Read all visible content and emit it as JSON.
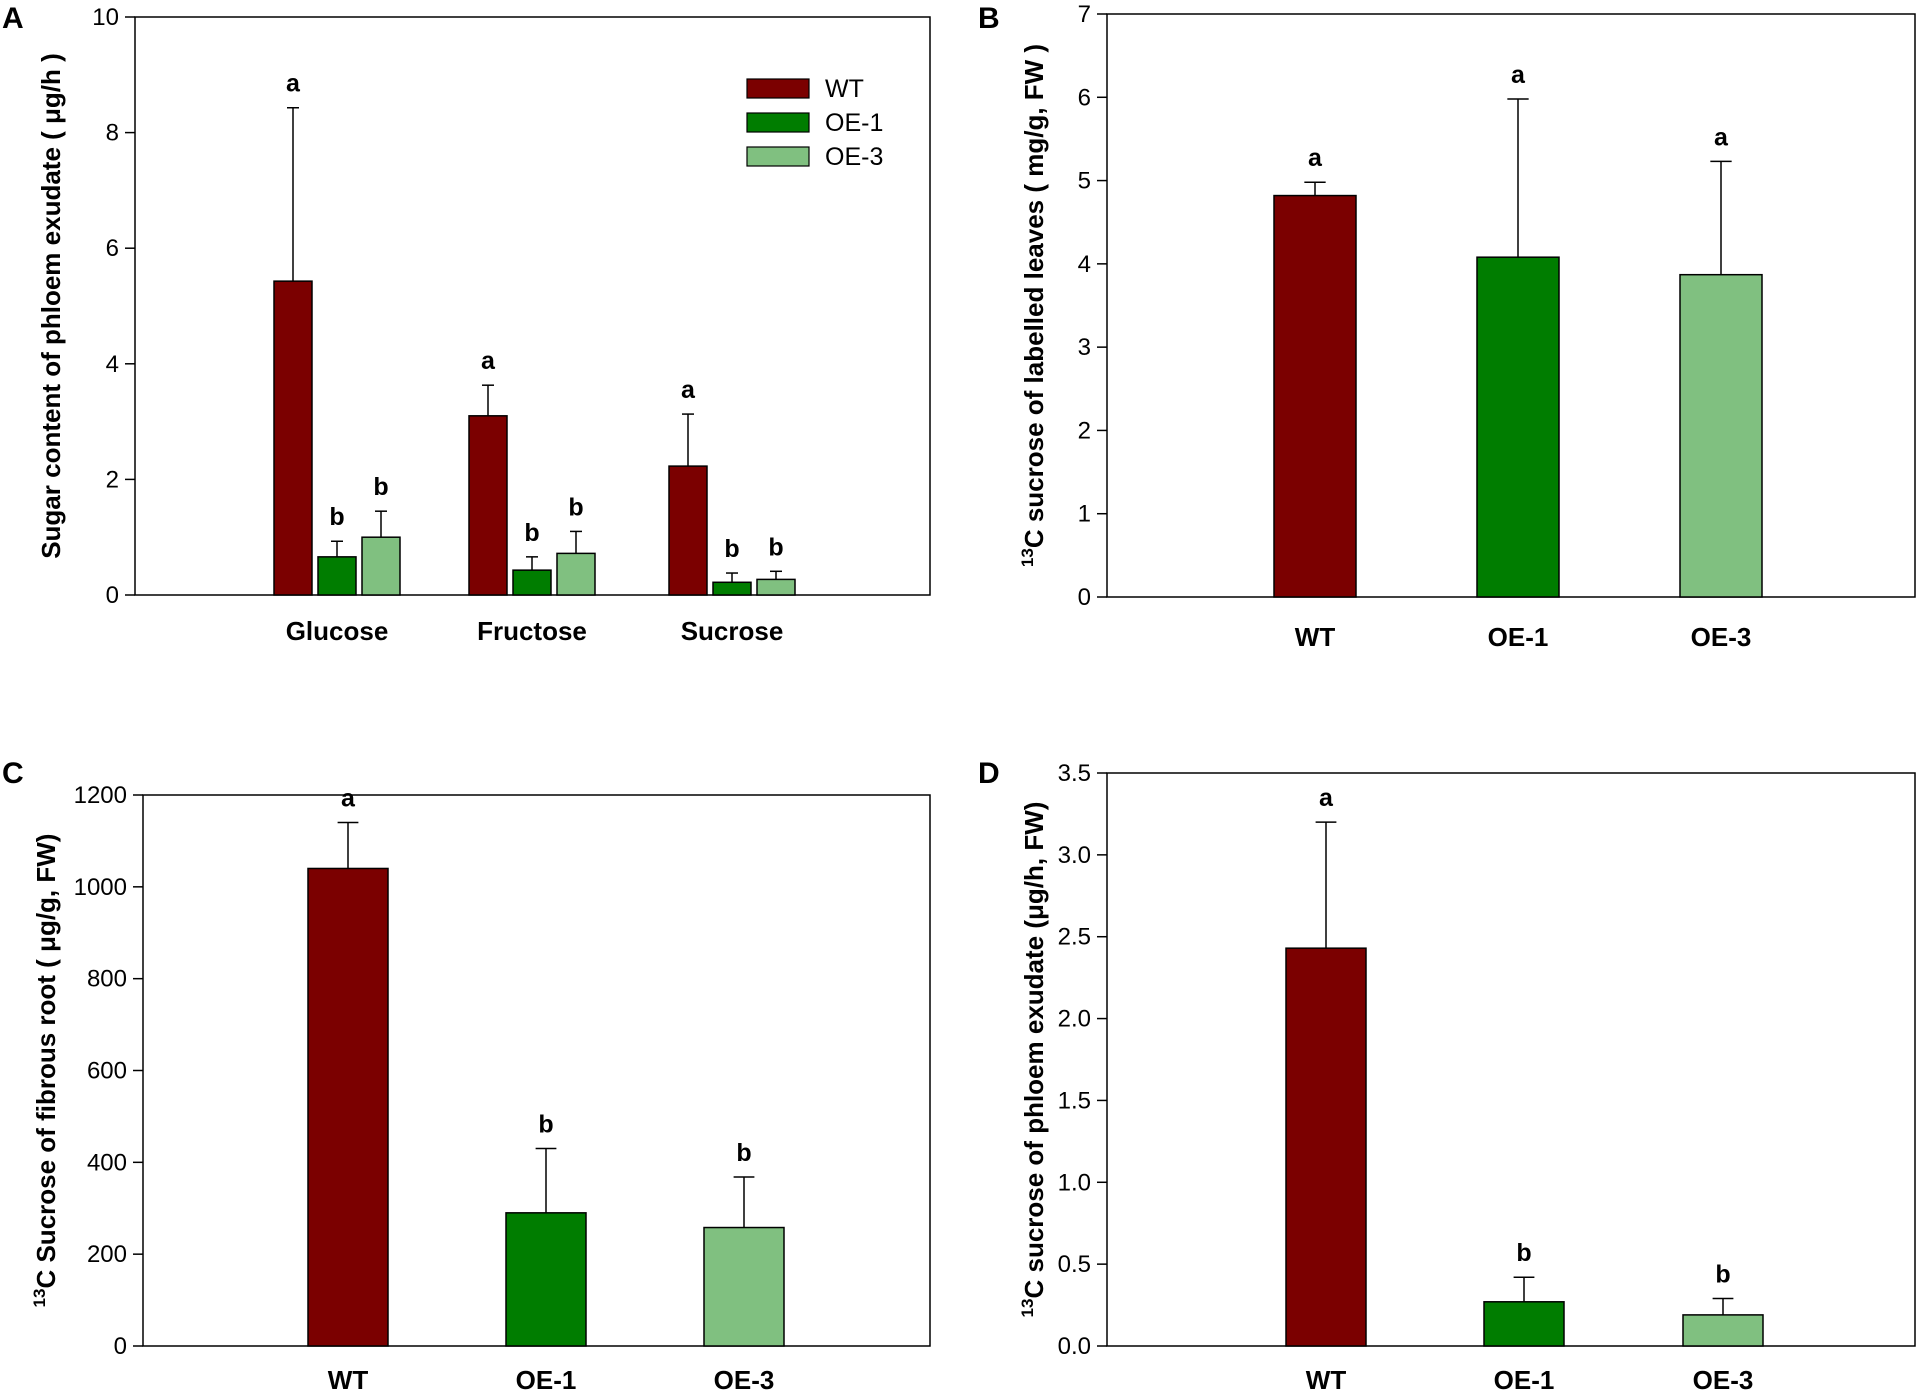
{
  "colors": {
    "WT": "#7b0000",
    "OE-1": "#007d00",
    "OE-3": "#80c080"
  },
  "chart_data": [
    {
      "id": "A",
      "type": "bar",
      "panel_label": "A",
      "title": "",
      "xlabel": "",
      "ylabel": "Sugar content of phloem exudate ( μg/h )",
      "ylabel_sup": "",
      "ylim": [
        0,
        10
      ],
      "yticks": [
        "0",
        "2",
        "4",
        "6",
        "8",
        "10"
      ],
      "categories": [
        "Glucose",
        "Fructose",
        "Sucrose"
      ],
      "legend": {
        "position": "top-right",
        "entries": [
          "WT",
          "OE-1",
          "OE-3"
        ]
      },
      "series": [
        {
          "name": "WT",
          "values": [
            5.43,
            3.1,
            2.23
          ],
          "errors": [
            3.0,
            0.53,
            0.9
          ],
          "letters": [
            "a",
            "a",
            "a"
          ]
        },
        {
          "name": "OE-1",
          "values": [
            0.66,
            0.43,
            0.22
          ],
          "errors": [
            0.27,
            0.23,
            0.16
          ],
          "letters": [
            "b",
            "b",
            "b"
          ]
        },
        {
          "name": "OE-3",
          "values": [
            1.0,
            0.72,
            0.27
          ],
          "errors": [
            0.45,
            0.38,
            0.14
          ],
          "letters": [
            "b",
            "b",
            "b"
          ]
        }
      ]
    },
    {
      "id": "B",
      "type": "bar",
      "panel_label": "B",
      "title": "",
      "xlabel": "",
      "ylabel": "C sucrose of labelled leaves ( mg/g, FW )",
      "ylabel_sup": "13",
      "ylim": [
        0,
        7
      ],
      "yticks": [
        "0",
        "1",
        "2",
        "3",
        "4",
        "5",
        "6",
        "7"
      ],
      "categories": [
        "WT",
        "OE-1",
        "OE-3"
      ],
      "values": [
        4.82,
        4.08,
        3.87
      ],
      "errors": [
        0.16,
        1.9,
        1.36
      ],
      "letters": [
        "a",
        "a",
        "a"
      ]
    },
    {
      "id": "C",
      "type": "bar",
      "panel_label": "C",
      "title": "",
      "xlabel": "",
      "ylabel": "C Sucrose of fibrous root ( μg/g, FW)",
      "ylabel_sup": "13",
      "ylim": [
        0,
        1200
      ],
      "yticks": [
        "0",
        "200",
        "400",
        "600",
        "800",
        "1000",
        "1200"
      ],
      "categories": [
        "WT",
        "OE-1",
        "OE-3"
      ],
      "values": [
        1040,
        290,
        258
      ],
      "errors": [
        100,
        140,
        110
      ],
      "letters": [
        "a",
        "b",
        "b"
      ]
    },
    {
      "id": "D",
      "type": "bar",
      "panel_label": "D",
      "title": "",
      "xlabel": "",
      "ylabel": "C sucrose of phloem exudate (μg/h,  FW)",
      "ylabel_sup": "13",
      "ylim": [
        0,
        3.5
      ],
      "yticks": [
        "0.0",
        "0.5",
        "1.0",
        "1.5",
        "2.0",
        "2.5",
        "3.0",
        "3.5"
      ],
      "categories": [
        "WT",
        "OE-1",
        "OE-3"
      ],
      "values": [
        2.43,
        0.27,
        0.19
      ],
      "errors": [
        0.77,
        0.15,
        0.1
      ],
      "letters": [
        "a",
        "b",
        "b"
      ]
    }
  ]
}
